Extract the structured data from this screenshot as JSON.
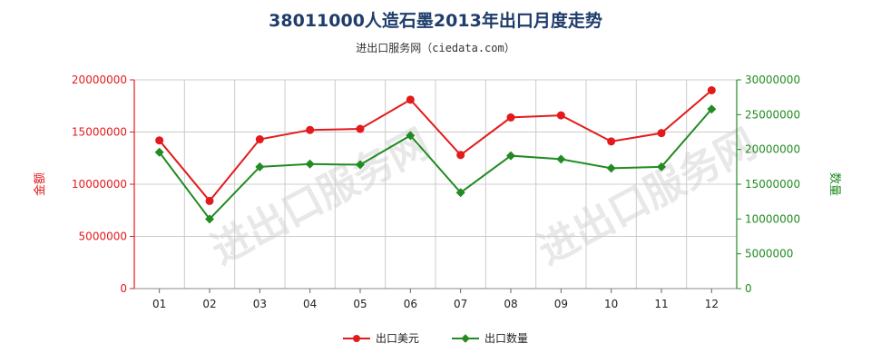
{
  "chart_data": {
    "type": "line",
    "title": "38011000人造石墨2013年出口月度走势",
    "subtitle": "进出口服务网（ciedata.com）",
    "watermark": "进出口服务网",
    "categories": [
      "01",
      "02",
      "03",
      "04",
      "05",
      "06",
      "07",
      "08",
      "09",
      "10",
      "11",
      "12"
    ],
    "y_left": {
      "label": "金额",
      "ylim": [
        0,
        20000000
      ],
      "ticks": [
        "0",
        "5000000",
        "10000000",
        "15000000",
        "20000000"
      ],
      "color": "#e31a1c"
    },
    "y_right": {
      "label": "数量",
      "ylim": [
        0,
        30000000
      ],
      "ticks": [
        "0",
        "5000000",
        "10000000",
        "15000000",
        "20000000",
        "25000000",
        "30000000"
      ],
      "color": "#228b22"
    },
    "series": [
      {
        "name": "出口美元",
        "axis": "left",
        "color": "#e31a1c",
        "marker": "circle",
        "values": [
          14200000,
          8400000,
          14300000,
          15200000,
          15300000,
          18100000,
          12800000,
          16400000,
          16600000,
          14100000,
          14900000,
          19000000
        ]
      },
      {
        "name": "出口数量",
        "axis": "right",
        "color": "#228b22",
        "marker": "diamond",
        "values": [
          19600000,
          10000000,
          17500000,
          17900000,
          17800000,
          22000000,
          13800000,
          19100000,
          18600000,
          17300000,
          17500000,
          25800000
        ]
      }
    ],
    "grid": true,
    "legend": "bottom-center"
  }
}
